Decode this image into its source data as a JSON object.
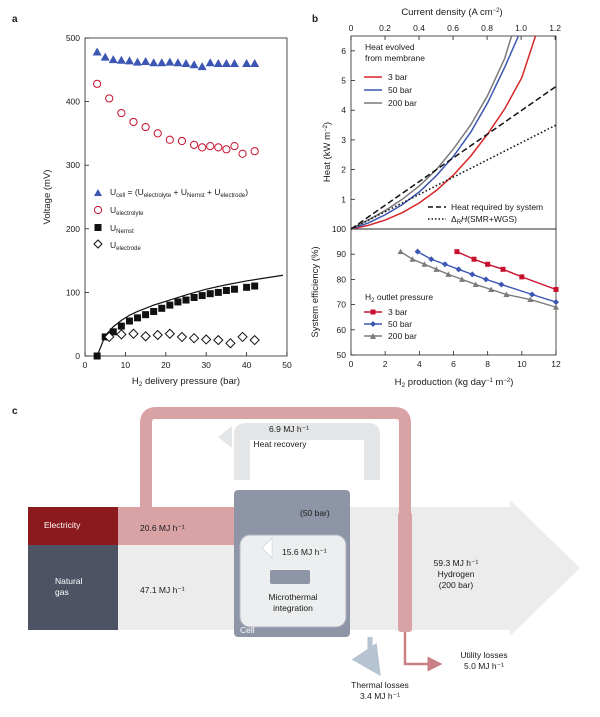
{
  "panel_labels": {
    "a": "a",
    "b": "b",
    "c": "c"
  },
  "chart_data": [
    {
      "id": "a",
      "type": "scatter",
      "xlabel": "H2 delivery pressure (bar)",
      "ylabel": "Voltage (mV)",
      "xlim": [
        0,
        50
      ],
      "ylim": [
        0,
        500
      ],
      "xticks": [
        0,
        10,
        20,
        30,
        40,
        50
      ],
      "yticks": [
        0,
        100,
        200,
        300,
        400,
        500
      ],
      "series": [
        {
          "name": "U_cell = (U_electrolyte + U_Nernst + U_electrode)",
          "marker": "triangle",
          "color": "#3b56b3",
          "x": [
            3,
            5,
            7,
            9,
            11,
            13,
            15,
            17,
            19,
            21,
            23,
            25,
            27,
            29,
            31,
            33,
            35,
            37,
            40,
            42
          ],
          "y": [
            478,
            470,
            466,
            465,
            464,
            462,
            463,
            461,
            461,
            462,
            461,
            460,
            458,
            455,
            461,
            460,
            460,
            460,
            460,
            460
          ]
        },
        {
          "name": "U_electrolyte",
          "marker": "open-circle",
          "color": "#c8102e",
          "x": [
            3,
            6,
            9,
            12,
            15,
            18,
            21,
            24,
            27,
            29,
            31,
            33,
            35,
            37,
            39,
            42
          ],
          "y": [
            428,
            405,
            382,
            368,
            360,
            350,
            340,
            338,
            332,
            328,
            330,
            328,
            325,
            330,
            318,
            322
          ]
        },
        {
          "name": "U_Nernst",
          "marker": "filled-square",
          "color": "#111111",
          "x": [
            3,
            5,
            7,
            9,
            11,
            13,
            15,
            17,
            19,
            21,
            23,
            25,
            27,
            29,
            31,
            33,
            35,
            37,
            40,
            42
          ],
          "y": [
            0,
            30,
            38,
            47,
            55,
            60,
            65,
            70,
            75,
            80,
            85,
            88,
            92,
            95,
            98,
            100,
            103,
            105,
            108,
            110
          ]
        },
        {
          "name": "U_electrode",
          "marker": "open-diamond",
          "color": "#111111",
          "x": [
            6,
            9,
            12,
            15,
            18,
            21,
            24,
            27,
            30,
            33,
            36,
            39,
            42
          ],
          "y": [
            30,
            34,
            35,
            31,
            33,
            35,
            30,
            28,
            26,
            25,
            20,
            30,
            25
          ]
        }
      ],
      "fit_curve": {
        "name": "Nernst fit",
        "x": [
          3,
          5,
          7,
          9,
          11,
          13,
          15,
          17,
          20,
          25,
          30,
          35,
          40,
          45,
          49
        ],
        "y": [
          0,
          32,
          46,
          56,
          64,
          70,
          75,
          80,
          86,
          96,
          105,
          112,
          118,
          123,
          127
        ]
      },
      "legend": [
        {
          "label": "U",
          "sub": "cell",
          "rest": " = (U",
          "sub2": "electrolyte",
          "rest2": " + U",
          "sub3": "Nernst",
          "rest3": " + U",
          "sub4": "electrode",
          "rest4": ")"
        },
        {
          "label": "U",
          "sub": "electrolyte"
        },
        {
          "label": "U",
          "sub": "Nernst"
        },
        {
          "label": "U",
          "sub": "electrode"
        }
      ]
    },
    {
      "id": "b-top",
      "type": "line",
      "xlabel_top": "Current density (A cm⁻²)",
      "ylabel": "Heat (kW m⁻²)",
      "xlim_top": [
        0,
        1.2
      ],
      "xticks_top": [
        "0",
        "0.2",
        "0.4",
        "0.6",
        "0.8",
        "1.0",
        "1.2"
      ],
      "ylim": [
        0,
        6.5
      ],
      "yticks": [
        "0",
        "1",
        "2",
        "3",
        "4",
        "5",
        "6"
      ],
      "xlim": [
        0,
        12
      ],
      "legend_title": "Heat evolved\nfrom membrane",
      "series": [
        {
          "name": "3 bar",
          "color": "#d62728",
          "style": "solid",
          "x": [
            0,
            1,
            2,
            3,
            4,
            5,
            6,
            7,
            8,
            9,
            10,
            10.8
          ],
          "y": [
            0,
            0.12,
            0.3,
            0.55,
            0.88,
            1.3,
            1.82,
            2.45,
            3.2,
            4.05,
            5.1,
            6.5
          ]
        },
        {
          "name": "50 bar",
          "color": "#3b56b3",
          "style": "solid",
          "x": [
            0,
            1,
            2,
            3,
            4,
            5,
            6,
            7,
            8,
            9,
            9.8
          ],
          "y": [
            0,
            0.2,
            0.48,
            0.82,
            1.25,
            1.8,
            2.45,
            3.25,
            4.25,
            5.45,
            6.5
          ]
        },
        {
          "name": "200 bar",
          "color": "#7a7a7a",
          "style": "solid",
          "x": [
            0,
            1,
            2,
            3,
            4,
            5,
            6,
            7,
            8,
            9,
            9.4
          ],
          "y": [
            0,
            0.3,
            0.62,
            1.0,
            1.45,
            2.0,
            2.7,
            3.5,
            4.5,
            5.75,
            6.5
          ]
        },
        {
          "name": "Heat required by system",
          "color": "#111111",
          "style": "dashed",
          "x": [
            0,
            12
          ],
          "y": [
            0,
            4.8
          ]
        },
        {
          "name": "ΔRH(SMR+WGS)",
          "color": "#111111",
          "style": "dotted",
          "x": [
            0,
            12
          ],
          "y": [
            0,
            3.5
          ]
        }
      ]
    },
    {
      "id": "b-bottom",
      "type": "line",
      "xlabel": "H2 production (kg day⁻¹ m⁻²)",
      "ylabel": "System efficiency (%)",
      "xlim": [
        0,
        12
      ],
      "ylim": [
        50,
        100
      ],
      "xticks": [
        "0",
        "2",
        "4",
        "6",
        "8",
        "10",
        "12"
      ],
      "yticks": [
        "50",
        "60",
        "70",
        "80",
        "90",
        "100"
      ],
      "legend_title": "H2 outlet pressure",
      "series": [
        {
          "name": "3 bar",
          "color": "#c8102e",
          "x": [
            6.2,
            7.2,
            8.0,
            8.9,
            10.0,
            12.0
          ],
          "y": [
            91,
            88,
            86,
            84,
            81,
            76
          ]
        },
        {
          "name": "50 bar",
          "color": "#3b56b3",
          "x": [
            3.9,
            4.7,
            5.5,
            6.3,
            7.1,
            7.9,
            8.8,
            10.6,
            12.0
          ],
          "y": [
            91,
            88,
            86,
            84,
            82,
            80,
            78,
            74,
            71
          ]
        },
        {
          "name": "200 bar",
          "color": "#7a7a7a",
          "x": [
            2.9,
            3.6,
            4.3,
            5.0,
            5.7,
            6.5,
            7.3,
            8.2,
            9.1,
            10.5,
            12.0
          ],
          "y": [
            91,
            88,
            86,
            84,
            82,
            80,
            78,
            76,
            74,
            72,
            69
          ]
        }
      ]
    }
  ],
  "sankey": {
    "electricity_label": "Electricity",
    "electricity_value": "20.6 MJ h⁻¹",
    "natural_gas_label": "Natural\ngas",
    "natural_gas_value": "47.1 MJ h⁻¹",
    "heat_recovery_value": "6.9 MJ h⁻¹",
    "heat_recovery_label": "Heat recovery",
    "cell_pressure": "(50 bar)",
    "cell_label": "Cell",
    "microthermal_value": "15.6 MJ h⁻¹",
    "microthermal_label": "Microthermal\nintegration",
    "hydrogen_value": "59.3 MJ h⁻¹",
    "hydrogen_label": "Hydrogen",
    "hydrogen_pressure": "(200 bar)",
    "thermal_losses_label": "Thermal losses",
    "thermal_losses_value": "3.4 MJ h⁻¹",
    "utility_losses_label": "Utility losses",
    "utility_losses_value": "5.0 MJ h⁻¹",
    "colors": {
      "electricity": "#8b1a1f",
      "gas": "#4d5363",
      "cell": "#8e95a6",
      "flow_red": "#d9a3a6",
      "flow_grey": "#ebeced",
      "thermal": "#c6d0dc"
    }
  }
}
